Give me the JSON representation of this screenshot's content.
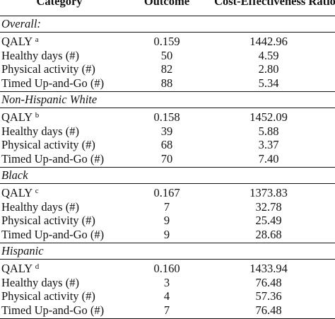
{
  "header": {
    "category": "Category",
    "outcome": "Outcome",
    "ratio": "Cost-Effectiveness Ratio"
  },
  "sections": [
    {
      "title": "Overall:",
      "rows": [
        {
          "label": "QALY",
          "sup": "a",
          "outcome": "0.159",
          "ratio": "1442.96"
        },
        {
          "label": "Healthy days (#)",
          "outcome": "50",
          "ratio": "4.59"
        },
        {
          "label": "Physical activity (#)",
          "outcome": "82",
          "ratio": "2.80"
        },
        {
          "label": "Timed Up-and-Go (#)",
          "outcome": "88",
          "ratio": "5.34"
        }
      ]
    },
    {
      "title": "Non-Hispanic White",
      "rows": [
        {
          "label": "QALY",
          "sup": "b",
          "outcome": "0.158",
          "ratio": "1452.09"
        },
        {
          "label": "Healthy days (#)",
          "outcome": "39",
          "ratio": "5.88"
        },
        {
          "label": "Physical activity (#)",
          "outcome": "68",
          "ratio": "3.37"
        },
        {
          "label": "Timed Up-and-Go (#)",
          "outcome": "70",
          "ratio": "7.40"
        }
      ]
    },
    {
      "title": "Black",
      "rows": [
        {
          "label": "QALY",
          "sup": "c",
          "outcome": "0.167",
          "ratio": "1373.83"
        },
        {
          "label": "Healthy days (#)",
          "outcome": "7",
          "ratio": "32.78"
        },
        {
          "label": "Physical activity (#)",
          "outcome": "9",
          "ratio": "25.49"
        },
        {
          "label": "Timed Up-and-Go (#)",
          "outcome": "9",
          "ratio": "28.68"
        }
      ]
    },
    {
      "title": "Hispanic",
      "rows": [
        {
          "label": "QALY",
          "sup": "d",
          "outcome": "0.160",
          "ratio": "1433.94"
        },
        {
          "label": "Healthy days (#)",
          "outcome": "3",
          "ratio": "76.48"
        },
        {
          "label": "Physical activity (#)",
          "outcome": "4",
          "ratio": "57.36"
        },
        {
          "label": "Timed Up-and-Go (#)",
          "outcome": "7",
          "ratio": "76.48"
        }
      ]
    }
  ]
}
